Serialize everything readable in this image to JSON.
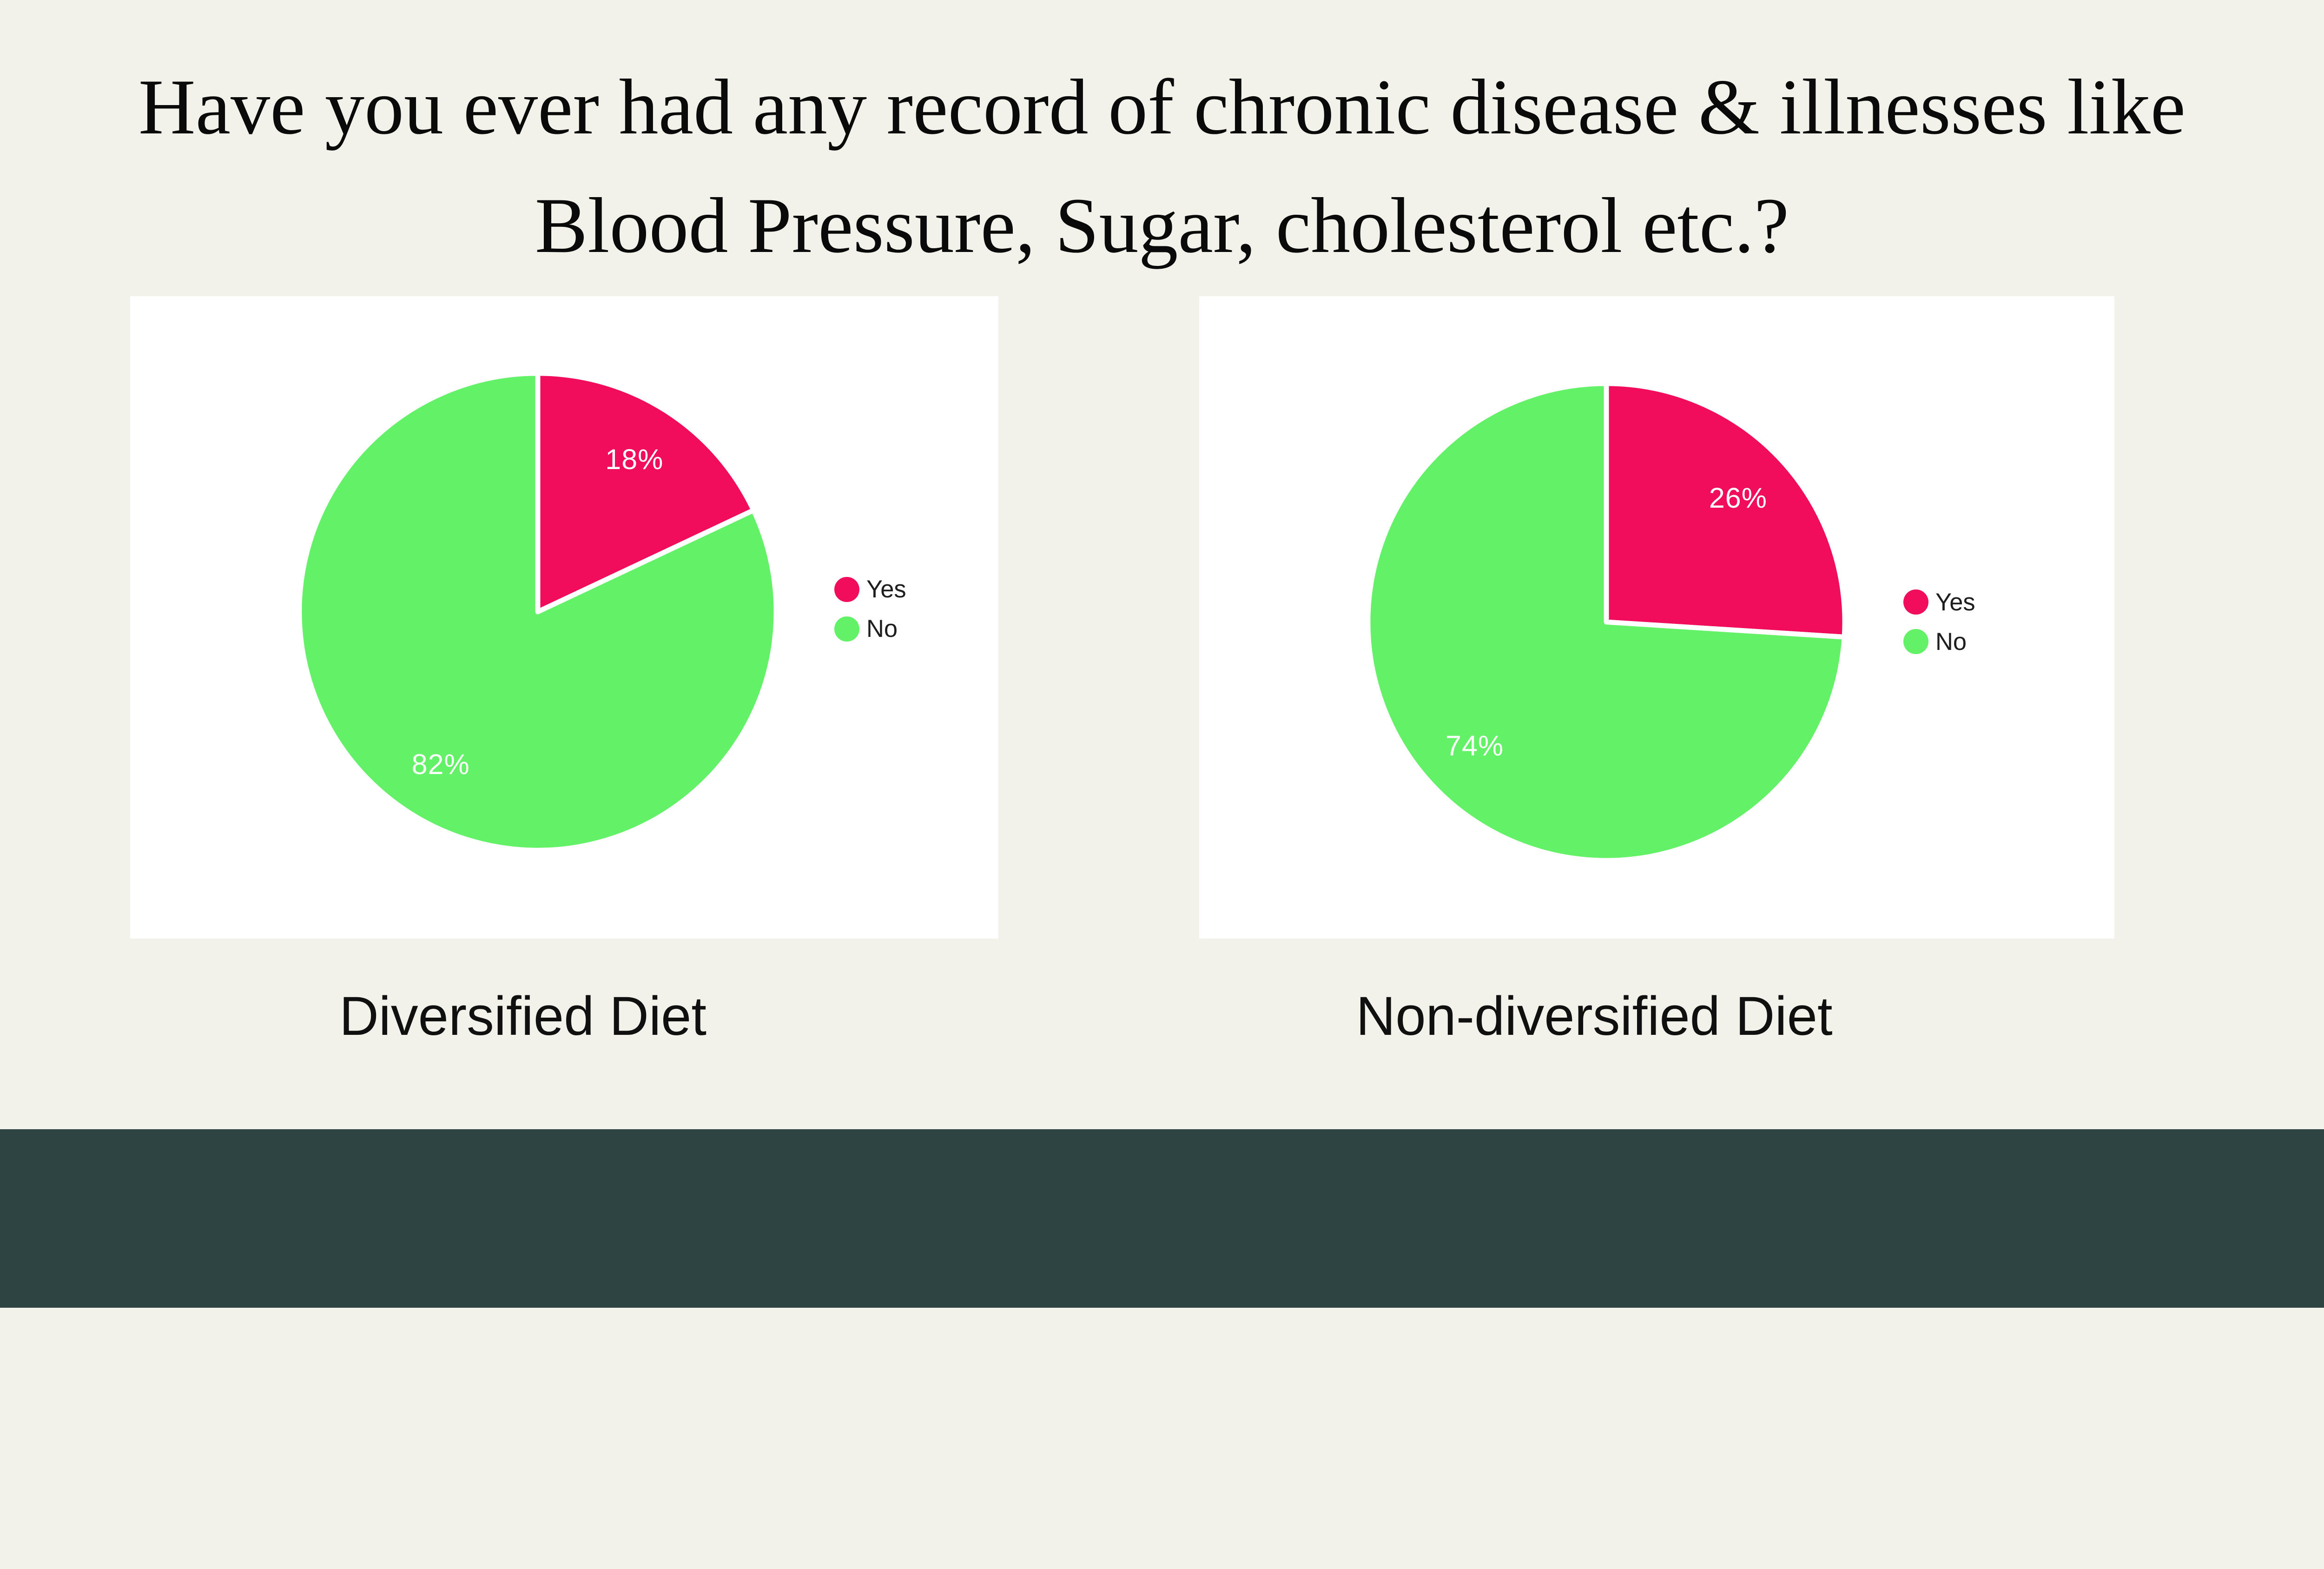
{
  "slide": {
    "question_title_line1": "Have you ever had any record of chronic disease & illnesses like",
    "question_title_line2": "Blood Pressure, Sugar, cholesterol etc.?",
    "background_color": "#F2F2EB",
    "card_color": "#FFFFFF",
    "footer_bar_color": "#2E4442"
  },
  "colors": {
    "yes": "#F20D5C",
    "no": "#63F167",
    "slice_label_text": "#FFFFFF",
    "legend_text": "#1E1E1E",
    "title_text": "#0A0A0A"
  },
  "chart_data": [
    {
      "type": "pie",
      "title": "Diversified Diet",
      "labels": [
        "Yes",
        "No"
      ],
      "values": [
        18,
        82
      ],
      "display_labels": [
        "18%",
        "82%"
      ],
      "colors": [
        "#F20D5C",
        "#63F167"
      ],
      "start_angle_deg": 0,
      "direction": "clockwise",
      "legend_position": "right",
      "slice_label_color": "#FFFFFF"
    },
    {
      "type": "pie",
      "title": "Non-diversified Diet",
      "labels": [
        "Yes",
        "No"
      ],
      "values": [
        26,
        74
      ],
      "display_labels": [
        "26%",
        "74%"
      ],
      "colors": [
        "#F20D5C",
        "#63F167"
      ],
      "start_angle_deg": 0,
      "direction": "clockwise",
      "legend_position": "right",
      "slice_label_color": "#FFFFFF"
    }
  ]
}
